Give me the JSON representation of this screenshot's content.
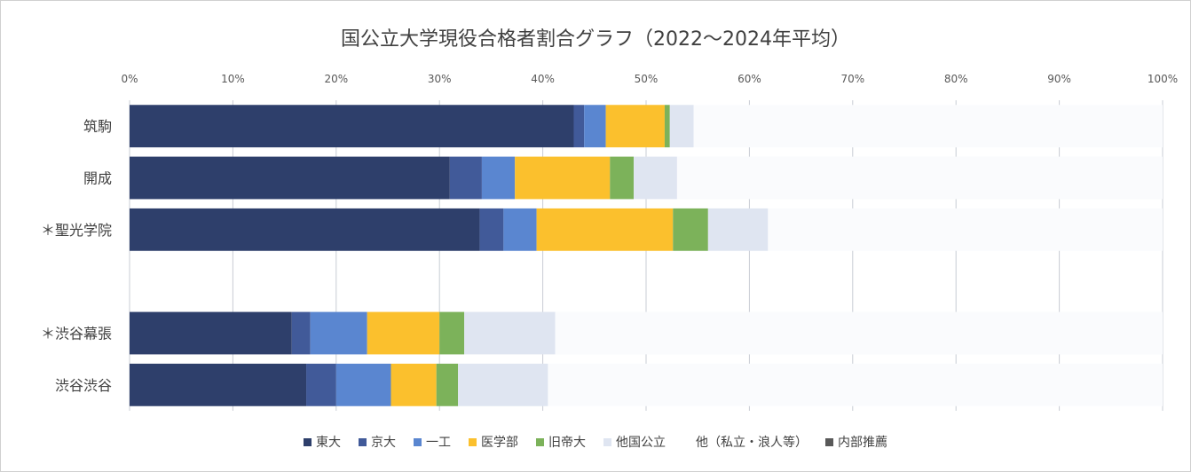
{
  "chart_data": {
    "type": "bar",
    "orientation": "horizontal",
    "stacked": true,
    "title": "国公立大学現役合格者割合グラフ（2022～2024年平均）",
    "xlabel": "",
    "ylabel": "",
    "xlim": [
      0,
      1
    ],
    "x_ticks": [
      0,
      0.1,
      0.2,
      0.3,
      0.4,
      0.5,
      0.6,
      0.7,
      0.8,
      0.9,
      1.0
    ],
    "x_tick_labels": [
      "0%",
      "10%",
      "20%",
      "30%",
      "40%",
      "50%",
      "60%",
      "70%",
      "80%",
      "90%",
      "100%"
    ],
    "grid": true,
    "legend_position": "bottom",
    "categories": [
      "筑駒",
      "開成",
      "＊聖光学院",
      "",
      "＊渋谷幕張",
      "渋谷渋谷"
    ],
    "series": [
      {
        "name": "東大",
        "color": "#2e3f6b",
        "values": [
          0.43,
          0.31,
          0.339,
          0,
          0.157,
          0.171
        ]
      },
      {
        "name": "京大",
        "color": "#415a99",
        "values": [
          0.01,
          0.031,
          0.023,
          0,
          0.018,
          0.029
        ]
      },
      {
        "name": "一工",
        "color": "#5a86d0",
        "values": [
          0.021,
          0.032,
          0.032,
          0,
          0.055,
          0.053
        ]
      },
      {
        "name": "医学部",
        "color": "#fbc02d",
        "values": [
          0.057,
          0.092,
          0.132,
          0,
          0.07,
          0.044
        ]
      },
      {
        "name": "旧帝大",
        "color": "#7cb25a",
        "values": [
          0.005,
          0.023,
          0.034,
          0,
          0.024,
          0.021
        ]
      },
      {
        "name": "他国公立",
        "color": "#dfe5f1",
        "values": [
          0.023,
          0.042,
          0.058,
          0,
          0.088,
          0.087
        ]
      },
      {
        "name": "他（私立・浪人等）",
        "color": "#fafbfd",
        "values": [
          0.454,
          0.47,
          0.382,
          0,
          0.588,
          0.595
        ]
      },
      {
        "name": "内部推薦",
        "color": "#595959",
        "values": [
          0,
          0,
          0,
          0,
          0,
          0
        ]
      }
    ]
  }
}
